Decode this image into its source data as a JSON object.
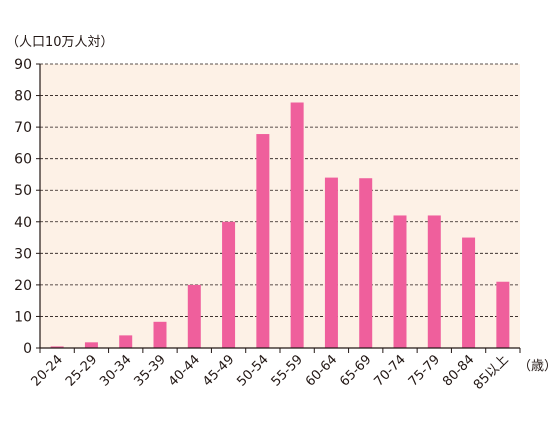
{
  "chart_data": {
    "type": "bar",
    "ylabel": "（人口10万人対）",
    "xlabel": "（歳）",
    "categories": [
      "20-24",
      "25-29",
      "30-34",
      "35-39",
      "40-44",
      "45-49",
      "50-54",
      "55-59",
      "60-64",
      "65-69",
      "70-74",
      "75-79",
      "80-84",
      "85以上"
    ],
    "values": [
      0.5,
      1.8,
      4,
      8.3,
      20,
      40,
      67.8,
      77.8,
      54,
      53.8,
      42,
      42,
      35,
      21
    ],
    "ylim": [
      0,
      90
    ],
    "yticks": [
      0,
      10,
      20,
      30,
      40,
      50,
      60,
      70,
      80,
      90
    ],
    "grid": true,
    "colors": {
      "bar": "#ef5f9c",
      "plot_bg": "#fdf1e6",
      "axis": "#231815",
      "grid": "#231815"
    }
  }
}
